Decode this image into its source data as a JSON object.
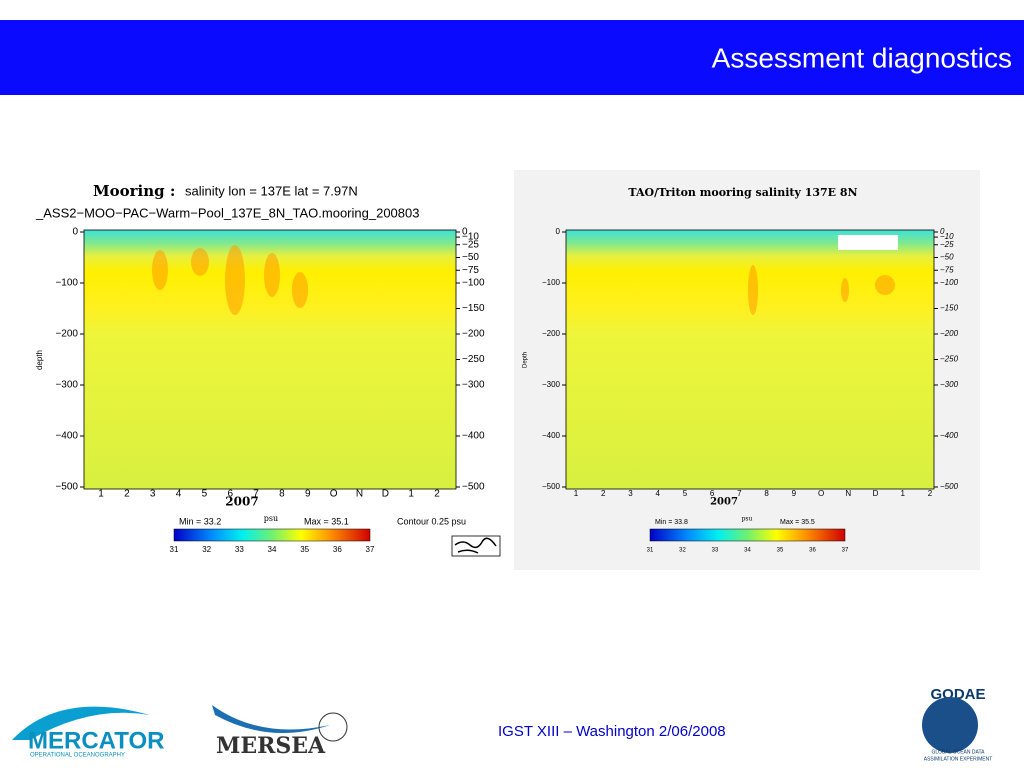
{
  "header": {
    "title": "Assessment diagnostics"
  },
  "footer": {
    "text": "IGST XIII – Washington  2/06/2008"
  },
  "logos": {
    "mercator": "MERCATOR",
    "mercator_sub": "OPERATIONAL OCEANOGRAPHY",
    "mersea": "MERSEA",
    "godae": "GODAE",
    "godae_sub_1": "GLOBAL OCEAN DATA",
    "godae_sub_2": "ASSIMILATION EXPERIMENT"
  },
  "left_plot": {
    "title_label": "Mooring :",
    "title": "salinity   lon = 137E   lat =  7.97N",
    "subtitle": "_ASS2−MOO−PAC−Warm−Pool_137E_8N_TAO.mooring_200803",
    "y_label": "depth",
    "left_ticks": [
      {
        "value": 0,
        "label": "0"
      },
      {
        "value": -100,
        "label": "−100"
      },
      {
        "value": -200,
        "label": "−200"
      },
      {
        "value": -300,
        "label": "−300"
      },
      {
        "value": -400,
        "label": "−400"
      },
      {
        "value": -500,
        "label": "−500"
      }
    ],
    "right_ticks": [
      {
        "value": 0,
        "label": "0"
      },
      {
        "value": -10,
        "label": "−10"
      },
      {
        "value": -25,
        "label": "−25"
      },
      {
        "value": -50,
        "label": "−50"
      },
      {
        "value": -75,
        "label": "−75"
      },
      {
        "value": -100,
        "label": "−100"
      },
      {
        "value": -150,
        "label": "−150"
      },
      {
        "value": -200,
        "label": "−200"
      },
      {
        "value": -250,
        "label": "−250"
      },
      {
        "value": -300,
        "label": "−300"
      },
      {
        "value": -400,
        "label": "−400"
      },
      {
        "value": -500,
        "label": "−500"
      }
    ],
    "months": [
      "1",
      "2",
      "3",
      "4",
      "5",
      "6",
      "7",
      "8",
      "9",
      "O",
      "N",
      "D",
      "1",
      "2"
    ],
    "year": "2007",
    "unit": "psu",
    "min": "Min = 33.2",
    "max": "Max = 35.1",
    "contour": "Contour  0.25 psu",
    "colorbar": [
      "31",
      "32",
      "33",
      "34",
      "35",
      "36",
      "37"
    ]
  },
  "right_plot": {
    "title": "TAO/Triton mooring salinity 137E 8N",
    "y_label": "Depth",
    "left_ticks": [
      {
        "value": 0,
        "label": "0"
      },
      {
        "value": -100,
        "label": "−100"
      },
      {
        "value": -200,
        "label": "−200"
      },
      {
        "value": -300,
        "label": "−300"
      },
      {
        "value": -400,
        "label": "−400"
      },
      {
        "value": -500,
        "label": "−500"
      }
    ],
    "right_ticks": [
      {
        "value": 0,
        "label": "0"
      },
      {
        "value": -10,
        "label": "−10"
      },
      {
        "value": -25,
        "label": "−25"
      },
      {
        "value": -50,
        "label": "−50"
      },
      {
        "value": -75,
        "label": "−75"
      },
      {
        "value": -100,
        "label": "−100"
      },
      {
        "value": -150,
        "label": "−150"
      },
      {
        "value": -200,
        "label": "−200"
      },
      {
        "value": -250,
        "label": "−250"
      },
      {
        "value": -300,
        "label": "−300"
      },
      {
        "value": -400,
        "label": "−400"
      },
      {
        "value": -500,
        "label": "−500"
      }
    ],
    "months": [
      "1",
      "2",
      "3",
      "4",
      "5",
      "6",
      "7",
      "8",
      "9",
      "O",
      "N",
      "D",
      "1",
      "2"
    ],
    "year": "2007",
    "unit": "psu",
    "min": "Min = 33.8",
    "max": "Max = 35.5",
    "colorbar": [
      "31",
      "32",
      "33",
      "34",
      "35",
      "36",
      "37"
    ]
  }
}
